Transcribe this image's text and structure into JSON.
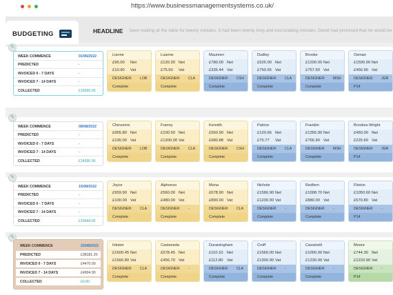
{
  "browser": {
    "url": "https://www.businessmanagementsystems.co.uk/"
  },
  "header": {
    "budget_title": "BUDGETING",
    "headline_label": "HEADLINE",
    "headline_text": "been waiting at the table for twenty minutes. It had been twenty long and excruciating minutes. David had promised that he would be"
  },
  "labels": {
    "week_commence": "WEEK COMMENCE",
    "predicted": "PREDICTED",
    "invoiced_0_7": "INVOICED 0 - 7 DAYS",
    "invoiced_7_14": "INVOICED 7 - 14 DAYS",
    "collected": "COLLECTED",
    "designer": "DESIGNER:",
    "net": "Net",
    "vat": "Vat"
  },
  "weeks": [
    {
      "week_commence": "01/06/2022",
      "predicted": "-",
      "invoiced_0_7": "-",
      "invoiced_7_14": "-",
      "collected": "£16090.00",
      "cards": [
        {
          "name": "Lianne",
          "net": "£95.00",
          "vat": "£10.90",
          "designer": "LOB",
          "status": "Complete",
          "color": "yellow"
        },
        {
          "name": "Luanne",
          "net": "£120.30",
          "vat": "£75.50",
          "designer": "CLA",
          "status": "Complete",
          "color": "yellow"
        },
        {
          "name": "Maureen",
          "net": "£780.00",
          "vat": "£335.44",
          "designer": "CSH",
          "status": "Complete",
          "color": "blue"
        },
        {
          "name": "Dudley",
          "net": "£525.00",
          "vat": "£750.55",
          "designer": "CLA",
          "status": "Complete",
          "color": "blue"
        },
        {
          "name": "Brooke",
          "net": "£1200.00",
          "vat": "£757.50",
          "designer": "MSH",
          "status": "Complete",
          "color": "blue"
        },
        {
          "name": "Osman",
          "net": "£1500.00",
          "vat": "£456.90",
          "designer": "JGR",
          "status": "P14",
          "color": "blue"
        }
      ]
    },
    {
      "week_commence": "08/08/2022",
      "predicted": "-",
      "invoiced_0_7": "-",
      "invoiced_7_14": "-",
      "collected": "£14590.00",
      "cards": [
        {
          "name": "Chevonne",
          "net": "£955.80",
          "vat": "£100.00",
          "designer": "LOB",
          "status": "Complete",
          "color": "yellow"
        },
        {
          "name": "Franny",
          "net": "£100.50",
          "vat": "£1200.00",
          "designer": "CLA",
          "status": "Complete",
          "color": "yellow"
        },
        {
          "name": "Kennith",
          "net": "£560.90",
          "vat": "£680.88",
          "designer": "CSH",
          "status": "Complete",
          "color": "yellow"
        },
        {
          "name": "Patrice",
          "net": "£120.66",
          "vat": "£75.77",
          "designer": "CLA",
          "status": "Complete",
          "color": "blue"
        },
        {
          "name": "Franklin",
          "net": "£1355.90",
          "vat": "£766.90",
          "designer": "MSH",
          "status": "Complete",
          "color": "blue"
        },
        {
          "name": "Brookes-Wright",
          "net": "£450.00",
          "vat": "£225.60",
          "designer": "JGR",
          "status": "P14",
          "color": "blue"
        }
      ]
    },
    {
      "week_commence": "15/08/2022",
      "predicted": "-",
      "invoiced_0_7": "-",
      "invoiced_7_14": "-",
      "collected": "£16644.00",
      "cards": [
        {
          "name": "Joyce",
          "net": "£959.90",
          "vat": "£100.00",
          "designer": "CLA",
          "status": "Complete",
          "color": "yellow"
        },
        {
          "name": "Alphonso",
          "net": "£560.00",
          "vat": "£480.00",
          "designer": "-",
          "status": "Complete",
          "color": "yellow"
        },
        {
          "name": "Mona",
          "net": "£678.90",
          "vat": "£890.00",
          "designer": "CLA",
          "status": "Complete",
          "color": "yellow"
        },
        {
          "name": "Nichole",
          "net": "£1566.90",
          "vat": "£1230.00",
          "designer": "-",
          "status": "Complete",
          "color": "blue"
        },
        {
          "name": "Redfern",
          "net": "£1008.70",
          "vat": "£880.00",
          "designer": "-",
          "status": "Complete",
          "color": "blue"
        },
        {
          "name": "Flinton",
          "net": "£1050.60",
          "vat": "£570.80",
          "designer": "-",
          "status": "P14",
          "color": "blue"
        }
      ]
    },
    {
      "week_commence": "22/08/2022",
      "predicted": "£38181.20",
      "invoiced_0_7": "£4470.00",
      "invoiced_7_14": "£4904.90",
      "collected": "£0.00",
      "cards": [
        {
          "name": "Inkster",
          "net": "£1600.45",
          "vat": "£1566.80",
          "designer": "CLA",
          "status": "Complete",
          "color": "yellow"
        },
        {
          "name": "Castaneda",
          "net": "£578.45",
          "vat": "£456.70",
          "designer": "-",
          "status": "Complete",
          "color": "yellow"
        },
        {
          "name": "Duraisingham",
          "net": "£110.10",
          "vat": "£112.80",
          "designer": "CLA",
          "status": "Complete",
          "color": "blue"
        },
        {
          "name": "Croff",
          "net": "£1560.00",
          "vat": "£1300.00",
          "designer": "-",
          "status": "Complete",
          "color": "blue"
        },
        {
          "name": "Cassinelli",
          "net": "£1000.00",
          "vat": "£1230.00",
          "designer": "-",
          "status": "Complete",
          "color": "blue"
        },
        {
          "name": "Moore",
          "net": "£744.30",
          "vat": "£1233.90",
          "designer": "-",
          "status": "P14",
          "color": "green"
        }
      ]
    }
  ]
}
